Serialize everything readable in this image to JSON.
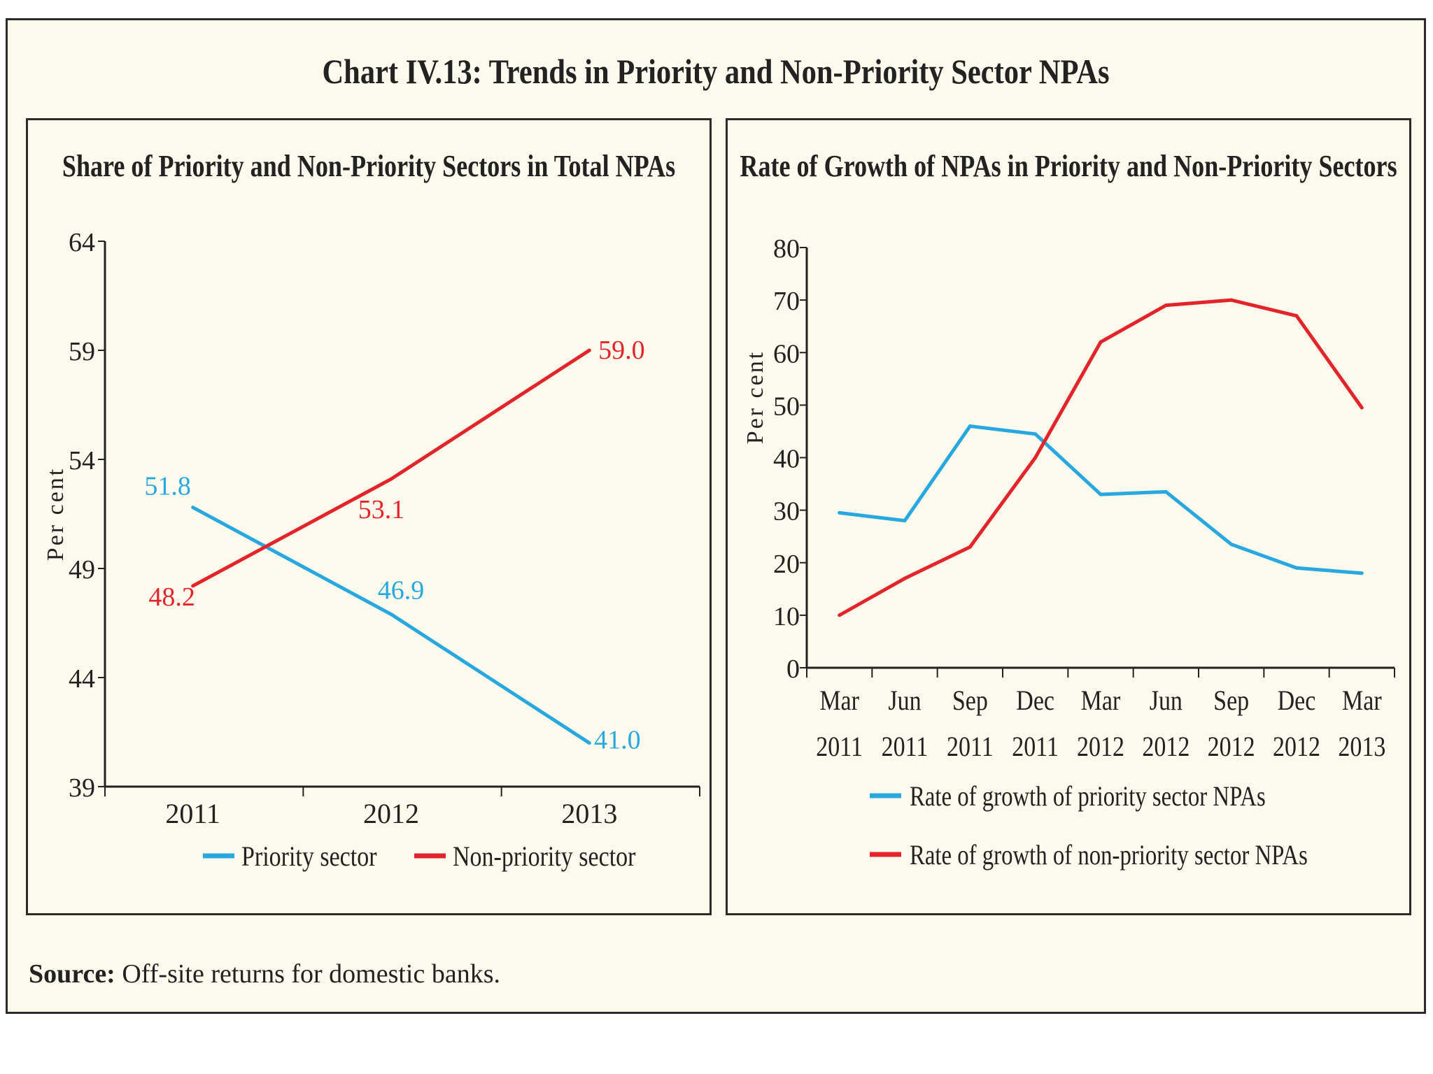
{
  "title": "Chart IV.13: Trends in Priority and Non-Priority Sector NPAs",
  "source_label": "Source:",
  "source_text": " Off-site returns for domestic banks.",
  "colors": {
    "priority": "#29a8e0",
    "non_priority": "#e3242b",
    "axis": "#222222"
  },
  "chart_data": [
    {
      "type": "line",
      "title": "Share of Priority and Non-Priority Sectors in Total NPAs",
      "ylabel": "Per cent",
      "xlabel": "",
      "categories": [
        "2011",
        "2012",
        "2013"
      ],
      "ylim": [
        39,
        64
      ],
      "yticks": [
        39,
        44,
        49,
        54,
        59,
        64
      ],
      "grid": false,
      "legend_position": "bottom",
      "series": [
        {
          "name": "Priority sector",
          "values": [
            51.8,
            46.9,
            41.0
          ],
          "labels": [
            "51.8",
            "46.9",
            "41.0"
          ]
        },
        {
          "name": "Non-priority sector",
          "values": [
            48.2,
            53.1,
            59.0
          ],
          "labels": [
            "48.2",
            "53.1",
            "59.0"
          ]
        }
      ]
    },
    {
      "type": "line",
      "title": "Rate of Growth of NPAs in Priority and Non-Priority Sectors",
      "ylabel": "Per cent",
      "xlabel": "",
      "categories": [
        [
          "Mar",
          "2011"
        ],
        [
          "Jun",
          "2011"
        ],
        [
          "Sep",
          "2011"
        ],
        [
          "Dec",
          "2011"
        ],
        [
          "Mar",
          "2012"
        ],
        [
          "Jun",
          "2012"
        ],
        [
          "Sep",
          "2012"
        ],
        [
          "Dec",
          "2012"
        ],
        [
          "Mar",
          "2013"
        ]
      ],
      "ylim": [
        0,
        80
      ],
      "yticks": [
        0,
        10,
        20,
        30,
        40,
        50,
        60,
        70,
        80
      ],
      "grid": false,
      "legend_position": "bottom",
      "series": [
        {
          "name": "Rate of growth of priority sector NPAs",
          "values": [
            29.5,
            28,
            46,
            44.5,
            33,
            33.5,
            23.5,
            19,
            18
          ]
        },
        {
          "name": "Rate of growth of non-priority sector NPAs",
          "values": [
            10,
            17,
            23,
            40,
            62,
            69,
            70,
            67,
            49.5
          ]
        }
      ]
    }
  ]
}
